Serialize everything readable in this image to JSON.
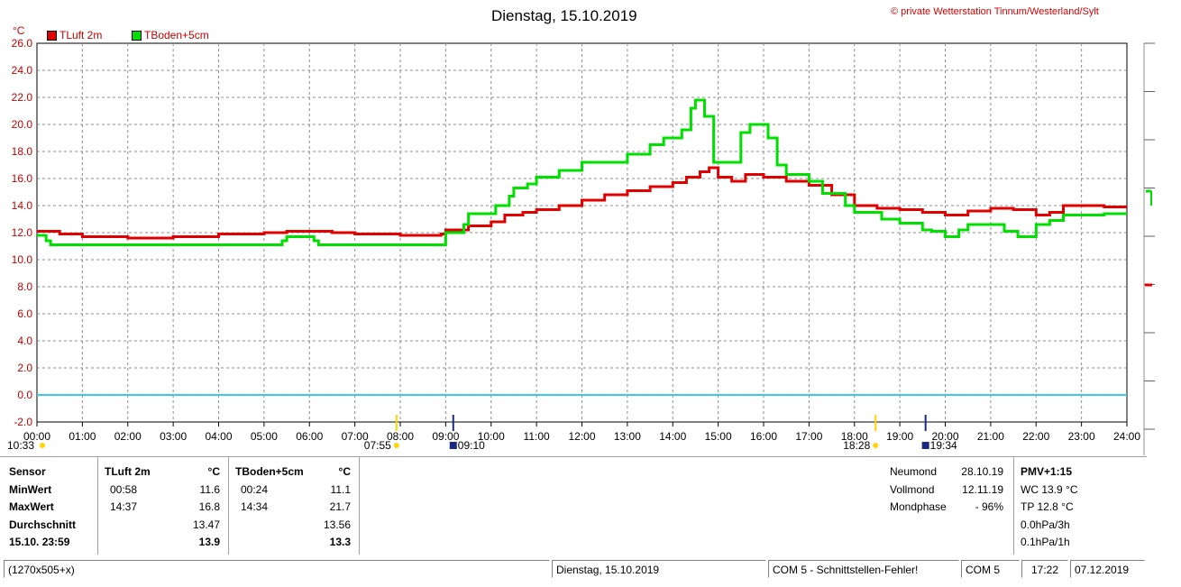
{
  "header": {
    "title": "Dienstag, 15.10.2019",
    "copyright": "© private Wetterstation Tinnum/Westerland/Sylt",
    "unit": "°C"
  },
  "legend": [
    {
      "label": "TLuft 2m",
      "color": "#e00000"
    },
    {
      "label": "TBoden+5cm",
      "color": "#00e000"
    }
  ],
  "chart_data": {
    "type": "line",
    "ylim": [
      -2,
      26
    ],
    "xlim": [
      0,
      24
    ],
    "y_ticks": [
      "26.0",
      "24.0",
      "22.0",
      "20.0",
      "18.0",
      "16.0",
      "14.0",
      "12.0",
      "10.0",
      "8.0",
      "6.0",
      "4.0",
      "2.0",
      "0.0",
      "-2.0"
    ],
    "x_ticks": [
      "00:00",
      "01:00",
      "02:00",
      "03:00",
      "04:00",
      "05:00",
      "06:00",
      "07:00",
      "08:00",
      "09:00",
      "10:00",
      "11:00",
      "12:00",
      "13:00",
      "14:00",
      "15:00",
      "16:00",
      "17:00",
      "18:00",
      "19:00",
      "20:00",
      "21:00",
      "22:00",
      "23:00",
      "24:00"
    ],
    "grid": true,
    "reference_line": {
      "y": 0,
      "color": "#33ccee"
    },
    "series": [
      {
        "name": "TLuft 2m",
        "color": "#e00000",
        "x": [
          0,
          0.5,
          1,
          2,
          3,
          4,
          5,
          5.5,
          6,
          6.5,
          7,
          7.5,
          8,
          8.5,
          8.9,
          9,
          9.5,
          10,
          10.3,
          10.7,
          11,
          11.5,
          12,
          12.5,
          13,
          13.5,
          14,
          14.3,
          14.6,
          14.8,
          15,
          15.3,
          15.6,
          16,
          16.5,
          17,
          17.5,
          18,
          18.5,
          19,
          19.5,
          20,
          20.5,
          21,
          21.5,
          22,
          22.3,
          22.6,
          23,
          23.5,
          24
        ],
        "y": [
          12.1,
          11.9,
          11.7,
          11.6,
          11.7,
          11.9,
          12.0,
          12.1,
          12.1,
          12.0,
          11.9,
          11.9,
          11.8,
          11.8,
          11.9,
          12.2,
          12.5,
          12.8,
          13.3,
          13.5,
          13.7,
          14.0,
          14.4,
          14.8,
          15.1,
          15.4,
          15.7,
          16.1,
          16.5,
          16.8,
          16.1,
          15.8,
          16.3,
          16.1,
          15.8,
          15.5,
          14.8,
          14.0,
          13.8,
          13.7,
          13.5,
          13.3,
          13.6,
          13.8,
          13.7,
          13.3,
          13.5,
          14.0,
          14.0,
          13.9,
          13.9
        ]
      },
      {
        "name": "TBoden+5cm",
        "color": "#00e000",
        "x": [
          0,
          0.2,
          0.3,
          5.3,
          5.4,
          5.5,
          6,
          6.1,
          6.2,
          7,
          8,
          8.8,
          9,
          9.4,
          9.5,
          10,
          10.1,
          10.4,
          10.5,
          10.8,
          11,
          11.3,
          11.5,
          11.8,
          12,
          12.5,
          13,
          13.5,
          13.8,
          14.2,
          14.4,
          14.5,
          14.7,
          14.9,
          15,
          15.4,
          15.5,
          15.7,
          16,
          16.1,
          16.3,
          16.5,
          17,
          17.3,
          17.8,
          18,
          18.6,
          19,
          19.5,
          19.7,
          20,
          20.3,
          20.5,
          21,
          21.3,
          21.6,
          22,
          22.3,
          22.6,
          23,
          23.5,
          24
        ],
        "y": [
          11.8,
          11.4,
          11.1,
          11.1,
          11.4,
          11.7,
          11.7,
          11.4,
          11.1,
          11.1,
          11.1,
          11.1,
          12.0,
          12.6,
          13.4,
          13.4,
          14.0,
          14.7,
          15.3,
          15.6,
          16.1,
          16.1,
          16.6,
          16.6,
          17.2,
          17.2,
          17.8,
          18.5,
          19.0,
          19.6,
          21.2,
          21.8,
          20.6,
          17.2,
          17.2,
          17.2,
          19.4,
          20.0,
          20.0,
          19.0,
          17.0,
          16.3,
          15.8,
          14.9,
          14.0,
          13.5,
          13.0,
          12.7,
          12.2,
          12.1,
          11.7,
          12.2,
          12.6,
          12.6,
          12.1,
          11.7,
          12.6,
          12.9,
          13.3,
          13.3,
          13.4,
          13.4
        ]
      }
    ]
  },
  "sun_moon_events": [
    {
      "time": "10:33",
      "kind": "moon-set"
    },
    {
      "time": "07:55",
      "kind": "sunrise"
    },
    {
      "time": "09:10",
      "kind": "moon-phase"
    },
    {
      "time": "18:28",
      "kind": "sunset"
    },
    {
      "time": "19:34",
      "kind": "moon-rise"
    }
  ],
  "info": {
    "sensor_table": {
      "col_sensor": "Sensor",
      "col_tluft": "TLuft 2m",
      "col_tboden": "TBoden+5cm",
      "unit": "°C",
      "rows": [
        {
          "label": "MinWert",
          "t1": "00:58",
          "v1": "11.6",
          "t2": "00:24",
          "v2": "11.1"
        },
        {
          "label": "MaxWert",
          "t1": "14:37",
          "v1": "16.8",
          "t2": "14:34",
          "v2": "21.7"
        },
        {
          "label": "Durchschnitt",
          "t1": "",
          "v1": "13.47",
          "t2": "",
          "v2": "13.56"
        },
        {
          "label": "15.10. 23:59",
          "t1": "",
          "v1": "13.9",
          "t2": "",
          "v2": "13.3"
        }
      ]
    },
    "moon": [
      {
        "label": "Neumond",
        "value": "28.10.19"
      },
      {
        "label": "Vollmond",
        "value": "12.11.19"
      },
      {
        "label": "Mondphase",
        "value": "- 96%"
      }
    ],
    "pmv": {
      "title": "PMV+1:15",
      "lines": [
        "WC 13.9 °C",
        "TP 12.8 °C",
        "0.0hPa/3h",
        "0.1hPa/1h"
      ]
    }
  },
  "status_bar": {
    "size": "(1270x505+x)",
    "date": "Dienstag, 15.10.2019",
    "com_error": "COM 5 - Schnittstellen-Fehler!",
    "com": "COM 5",
    "time": "17:22",
    "sysdate": "07.12.2019"
  }
}
